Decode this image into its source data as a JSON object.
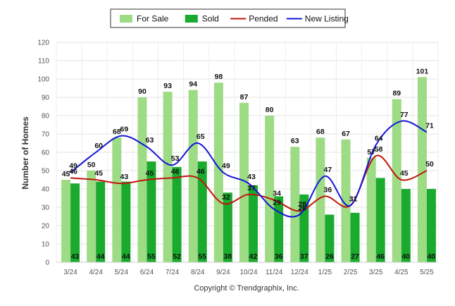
{
  "chart_data": {
    "type": "bar",
    "categories": [
      "3/24",
      "4/24",
      "5/24",
      "6/24",
      "7/24",
      "8/24",
      "9/24",
      "10/24",
      "11/24",
      "12/24",
      "1/25",
      "2/25",
      "3/25",
      "4/25",
      "5/25"
    ],
    "series": [
      {
        "name": "For Sale",
        "kind": "bar",
        "color": "#9ddc85",
        "values": [
          45,
          50,
          68,
          90,
          93,
          94,
          98,
          87,
          80,
          63,
          68,
          67,
          57,
          89,
          101
        ]
      },
      {
        "name": "Sold",
        "kind": "bar",
        "color": "#1aaa2e",
        "values": [
          43,
          44,
          44,
          55,
          52,
          55,
          38,
          42,
          36,
          37,
          26,
          27,
          46,
          40,
          40
        ]
      },
      {
        "name": "Pended",
        "kind": "line",
        "color": "#c0140c",
        "values": [
          46,
          45,
          43,
          45,
          46,
          46,
          32,
          37,
          34,
          28,
          36,
          31,
          58,
          45,
          50
        ]
      },
      {
        "name": "New Listing",
        "kind": "line",
        "color": "#1414d8",
        "values": [
          49,
          60,
          69,
          63,
          53,
          65,
          49,
          43,
          29,
          26,
          47,
          31,
          64,
          77,
          71
        ]
      }
    ],
    "ylabel": "Number of Homes",
    "ylim": [
      0,
      120
    ],
    "yticks": [
      0,
      10,
      20,
      30,
      40,
      50,
      60,
      70,
      80,
      90,
      100,
      110,
      120
    ],
    "grid": true,
    "legend_position": "top-center",
    "copyright": "Copyright © Trendgraphix, Inc."
  }
}
